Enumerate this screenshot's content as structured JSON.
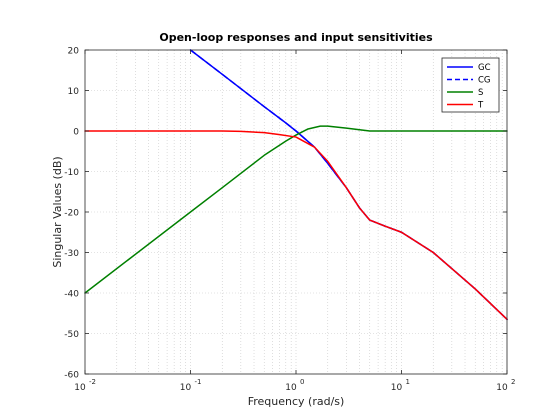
{
  "chart_data": {
    "type": "line",
    "title": "Open-loop responses and input sensitivities",
    "xlabel": "Frequency (rad/s)",
    "ylabel": "Singular Values (dB)",
    "xscale": "log",
    "xlim": [
      0.01,
      100
    ],
    "ylim": [
      -60,
      20
    ],
    "x_ticks": [
      {
        "value": 0.01,
        "base": "10",
        "exp": "-2"
      },
      {
        "value": 0.1,
        "base": "10",
        "exp": "-1"
      },
      {
        "value": 1,
        "base": "10",
        "exp": "0"
      },
      {
        "value": 10,
        "base": "10",
        "exp": "1"
      },
      {
        "value": 100,
        "base": "10",
        "exp": "2"
      }
    ],
    "y_ticks": [
      {
        "value": 20,
        "label": "20"
      },
      {
        "value": 10,
        "label": "10"
      },
      {
        "value": 0,
        "label": "0"
      },
      {
        "value": -10,
        "label": "-10"
      },
      {
        "value": -20,
        "label": "-20"
      },
      {
        "value": -30,
        "label": "-30"
      },
      {
        "value": -40,
        "label": "-40"
      },
      {
        "value": -50,
        "label": "-50"
      },
      {
        "value": -60,
        "label": "-60"
      }
    ],
    "grid": "dotted-major-and-minor",
    "legend_position": "top-right",
    "series": [
      {
        "name": "GC",
        "color": "#0000ff",
        "style": "solid",
        "x": [
          0.1,
          0.2,
          0.5,
          0.8,
          1,
          1.5,
          2,
          3,
          4,
          5,
          7,
          10,
          20,
          50,
          100
        ],
        "y": [
          20,
          14,
          6,
          2,
          0,
          -4,
          -8,
          -14,
          -19,
          -22,
          -23.5,
          -25,
          -30,
          -39,
          -46.5
        ]
      },
      {
        "name": "CG",
        "color": "#0000ff",
        "style": "dashed",
        "x": [
          0.1,
          0.2,
          0.5,
          0.8,
          1,
          1.5,
          2,
          3,
          4,
          5,
          7,
          10,
          20,
          50,
          100
        ],
        "y": [
          20,
          14,
          6,
          2,
          0,
          -4,
          -8,
          -14,
          -19,
          -22,
          -23.5,
          -25,
          -30,
          -39,
          -46.5
        ]
      },
      {
        "name": "S",
        "color": "#008000",
        "style": "solid",
        "x": [
          0.01,
          0.1,
          0.2,
          0.5,
          0.8,
          1,
          1.3,
          1.7,
          2,
          3,
          5,
          10,
          100
        ],
        "y": [
          -40,
          -20,
          -14,
          -6,
          -2.5,
          -1,
          0.5,
          1.2,
          1.2,
          0.7,
          0,
          0,
          0
        ]
      },
      {
        "name": "T",
        "color": "#ff0000",
        "style": "solid",
        "x": [
          0.01,
          0.1,
          0.2,
          0.3,
          0.5,
          0.7,
          1,
          1.5,
          2,
          3,
          4,
          5,
          7,
          10,
          20,
          50,
          100
        ],
        "y": [
          0,
          0,
          0,
          -0.1,
          -0.4,
          -0.9,
          -1.5,
          -4,
          -7.5,
          -14,
          -19,
          -22,
          -23.5,
          -25,
          -30,
          -39,
          -46.5
        ]
      }
    ]
  }
}
